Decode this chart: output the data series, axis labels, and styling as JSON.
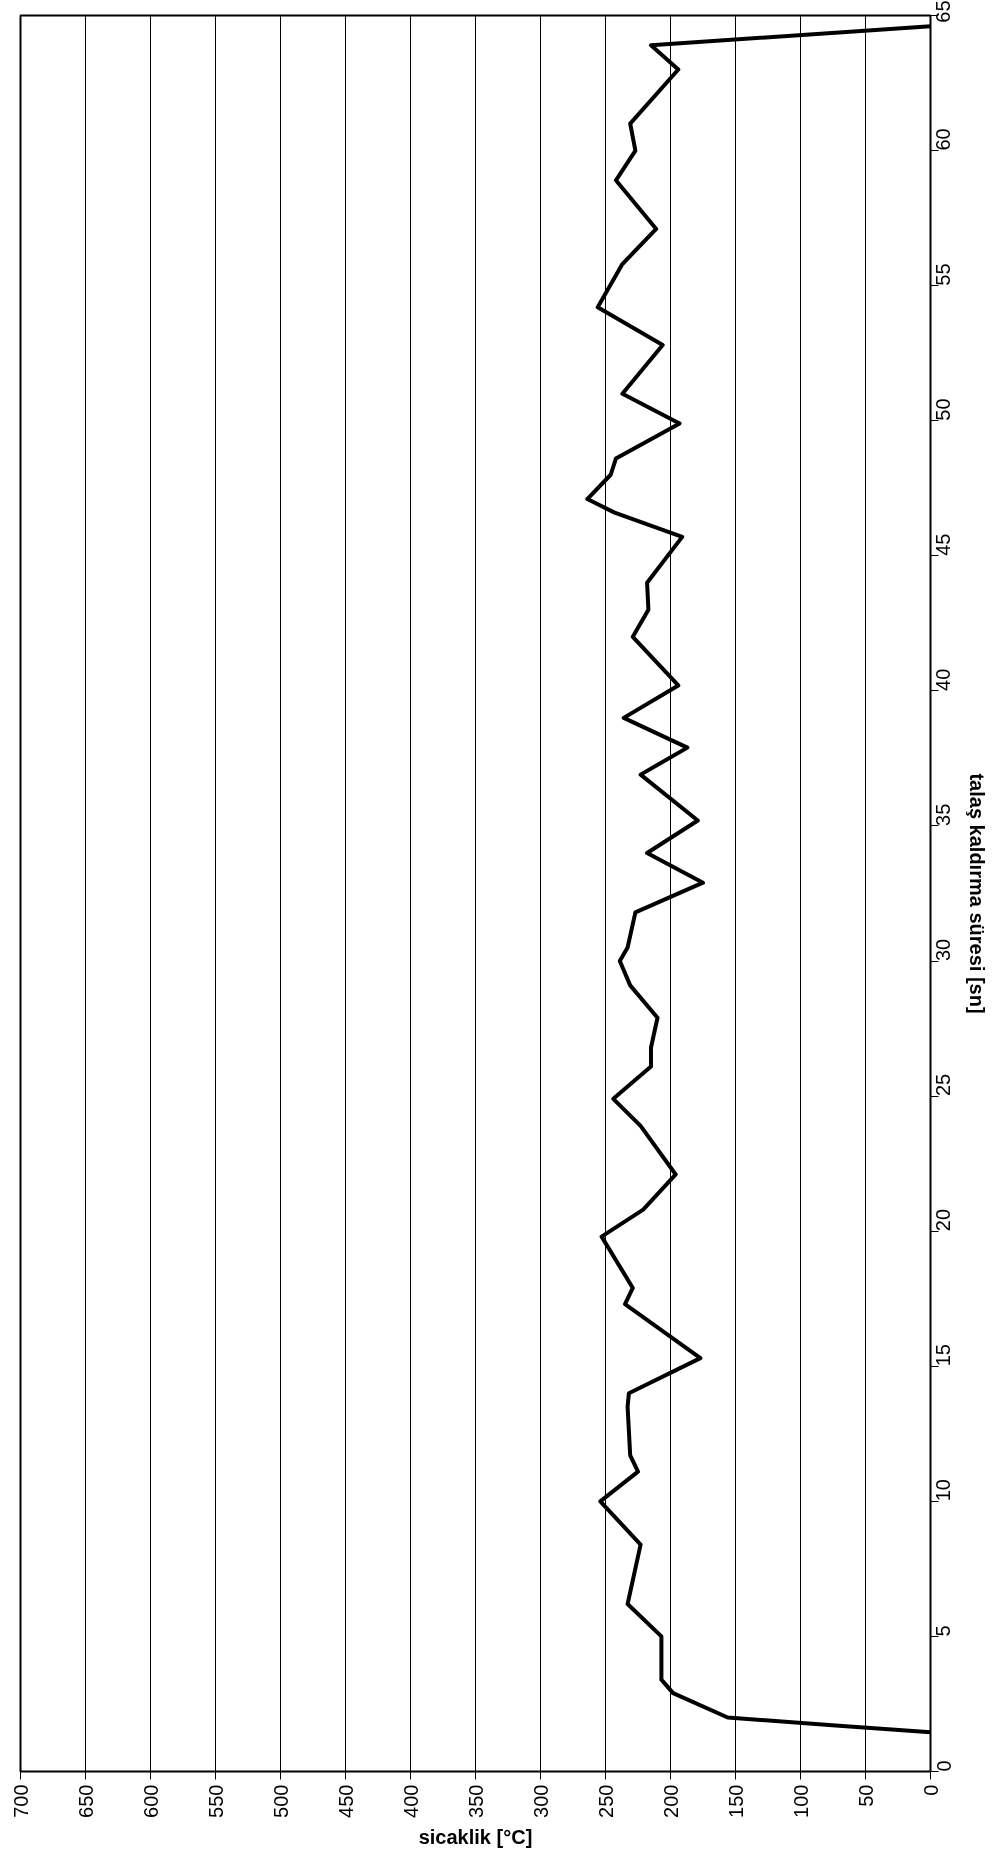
{
  "chart_data": {
    "type": "line",
    "xlabel": "sicaklik [°C]",
    "ylabel": "talaş kaldırma süresi [sn]",
    "x": [
      0,
      73,
      156,
      198,
      207,
      207,
      233,
      223,
      254,
      225,
      231,
      233,
      232,
      177,
      235,
      229,
      253,
      221,
      196,
      223,
      244,
      215,
      215,
      210,
      231,
      239,
      233,
      227,
      175,
      218,
      179,
      223,
      187,
      236,
      194,
      229,
      217,
      218,
      191,
      243,
      264,
      246,
      242,
      193,
      237,
      206,
      256,
      237,
      211,
      242,
      227,
      231,
      194,
      215,
      0
    ],
    "series": [
      {
        "color": "#000000",
        "values": [
          1.45,
          1.7,
          2.0,
          2.9,
          3.4,
          5.0,
          6.2,
          8.4,
          10.0,
          11.1,
          11.7,
          13.5,
          14.0,
          15.3,
          17.3,
          17.9,
          19.8,
          20.8,
          22.1,
          23.9,
          24.9,
          26.1,
          26.8,
          27.9,
          29.1,
          30.0,
          30.5,
          31.8,
          32.9,
          34.0,
          35.2,
          36.9,
          37.9,
          39.0,
          40.2,
          42.0,
          43.0,
          44.0,
          45.7,
          46.6,
          47.1,
          48.0,
          48.6,
          49.9,
          51.0,
          52.8,
          54.2,
          55.8,
          57.1,
          58.9,
          60.0,
          61.0,
          63.0,
          63.9,
          64.6
        ]
      }
    ],
    "xlim": [
      700,
      0
    ],
    "xticks": [
      700,
      650,
      600,
      550,
      500,
      450,
      400,
      350,
      300,
      250,
      200,
      150,
      100,
      50,
      0
    ],
    "ylim": [
      0,
      65
    ],
    "yticks": [
      0,
      5,
      10,
      15,
      20,
      25,
      30,
      35,
      40,
      45,
      50,
      55,
      60,
      65
    ],
    "grid": "x",
    "line_style": "solid"
  }
}
